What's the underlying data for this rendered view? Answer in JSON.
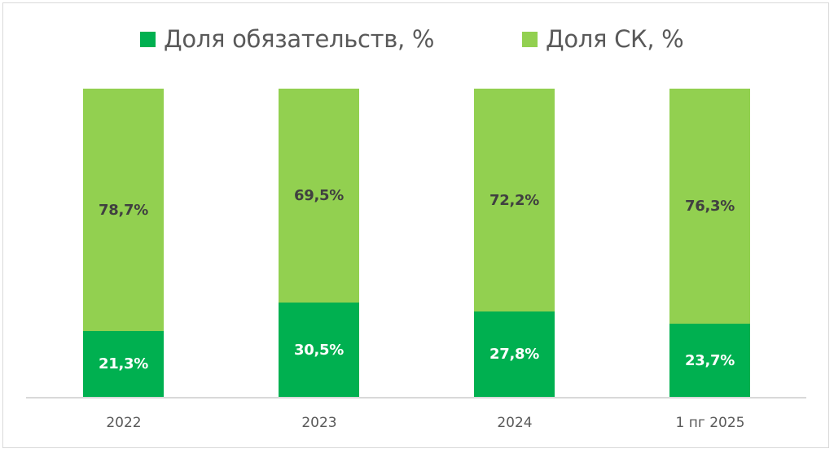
{
  "colors": {
    "liabilities": "#00B050",
    "equity": "#92D050",
    "axis": "#D9D9D9",
    "text": "#595959",
    "label_dark": "#404040",
    "label_light": "#FFFFFF"
  },
  "legend": {
    "items": [
      {
        "label": "Доля обязательств, %",
        "color": "#00B050"
      },
      {
        "label": "Доля СК, %",
        "color": "#92D050"
      }
    ]
  },
  "bars": [
    {
      "category": "2022",
      "liabilities": 21.3,
      "equity": 78.7,
      "liabilities_label": "21,3%",
      "equity_label": "78,7%"
    },
    {
      "category": "2023",
      "liabilities": 30.5,
      "equity": 69.5,
      "liabilities_label": "30,5%",
      "equity_label": "69,5%"
    },
    {
      "category": "2024",
      "liabilities": 27.8,
      "equity": 72.2,
      "liabilities_label": "27,8%",
      "equity_label": "72,2%"
    },
    {
      "category": "1 пг 2025",
      "liabilities": 23.7,
      "equity": 76.3,
      "liabilities_label": "23,7%",
      "equity_label": "76,3%"
    }
  ],
  "chart_data": {
    "type": "bar",
    "stacked": true,
    "percent_stacked": true,
    "title": "",
    "categories": [
      "2022",
      "2023",
      "2024",
      "1 пг 2025"
    ],
    "series": [
      {
        "name": "Доля обязательств, %",
        "color": "#00B050",
        "values": [
          21.3,
          30.5,
          27.8,
          23.7
        ]
      },
      {
        "name": "Доля СК, %",
        "color": "#92D050",
        "values": [
          78.7,
          69.5,
          72.2,
          76.3
        ]
      }
    ],
    "data_labels": {
      "Доля обязательств, %": [
        "21,3%",
        "30,5%",
        "27,8%",
        "23,7%"
      ],
      "Доля СК, %": [
        "78,7%",
        "69,5%",
        "72,2%",
        "76,3%"
      ]
    },
    "xlabel": "",
    "ylabel": "",
    "ylim": [
      0,
      100
    ],
    "y_axis_visible": false,
    "grid": false,
    "legend_position": "top"
  }
}
